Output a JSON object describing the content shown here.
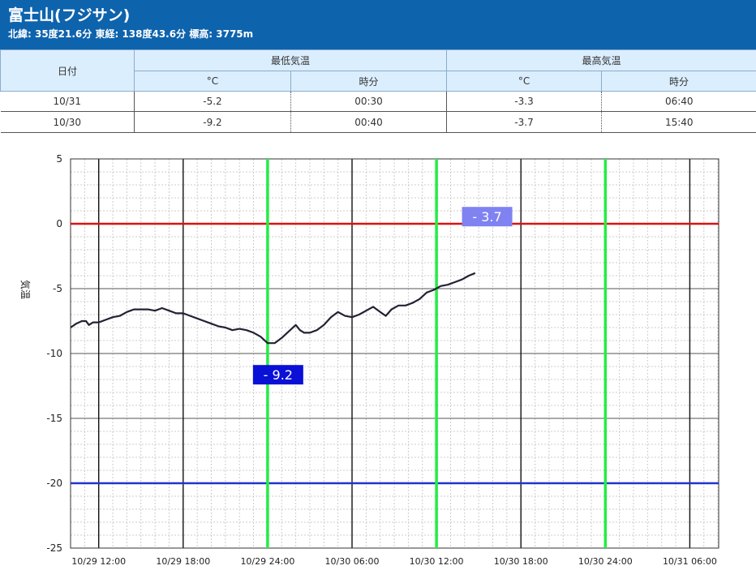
{
  "station": {
    "title": "富士山(フジサン)",
    "coords": "北緯: 35度21.6分 東経: 138度43.6分 標高: 3775m"
  },
  "table": {
    "date_header": "日付",
    "min_header": "最低気温",
    "max_header": "最高気温",
    "unit_celsius": "°C",
    "time_label": "時分",
    "rows": [
      {
        "date": "10/31",
        "min_c": "-5.2",
        "min_time": "00:30",
        "max_c": "-3.3",
        "max_time": "06:40"
      },
      {
        "date": "10/30",
        "min_c": "-9.2",
        "min_time": "00:40",
        "max_c": "-3.7",
        "max_time": "15:40"
      }
    ]
  },
  "chart_data": {
    "type": "line",
    "ylabel": "気温",
    "ylim": [
      -25,
      5
    ],
    "yticks": [
      5,
      0,
      -5,
      -10,
      -15,
      -20,
      -25
    ],
    "x_hours_range": [
      0,
      28.75
    ],
    "x_tick_labels": [
      {
        "hour": 2,
        "label": "10/29 12:00"
      },
      {
        "hour": 8,
        "label": "10/29 18:00"
      },
      {
        "hour": 14,
        "label": "10/29 24:00"
      },
      {
        "hour": 20,
        "label": "10/30 06:00"
      },
      {
        "hour": 26,
        "label": "10/30 12:00"
      },
      {
        "hour": 32,
        "label": "10/30 18:00"
      },
      {
        "hour": 38,
        "label": "10/30 24:00"
      },
      {
        "hour": 44,
        "label": "10/31 06:00"
      }
    ],
    "reference_lines": [
      {
        "value": 0,
        "color": "#dd1111"
      },
      {
        "value": -20,
        "color": "#2233cc"
      }
    ],
    "day_markers_hours": [
      14,
      26,
      38
    ],
    "day_marker_color": "#22ee44",
    "annotations": [
      {
        "text": "- 9.2",
        "hour": 14.4,
        "value": -9.2,
        "style": "min"
      },
      {
        "text": "- 3.7",
        "hour": 29.6,
        "value": -3.7,
        "style": "max"
      }
    ],
    "series": [
      {
        "color": "#222233",
        "points": [
          [
            0,
            -8.0
          ],
          [
            0.4,
            -7.7
          ],
          [
            0.8,
            -7.5
          ],
          [
            1.1,
            -7.5
          ],
          [
            1.3,
            -7.8
          ],
          [
            1.6,
            -7.6
          ],
          [
            2.0,
            -7.6
          ],
          [
            2.5,
            -7.4
          ],
          [
            3.0,
            -7.2
          ],
          [
            3.5,
            -7.1
          ],
          [
            4.0,
            -6.8
          ],
          [
            4.5,
            -6.6
          ],
          [
            5.0,
            -6.6
          ],
          [
            5.5,
            -6.6
          ],
          [
            6.0,
            -6.7
          ],
          [
            6.5,
            -6.5
          ],
          [
            7.0,
            -6.7
          ],
          [
            7.5,
            -6.9
          ],
          [
            8.0,
            -6.9
          ],
          [
            8.5,
            -7.1
          ],
          [
            9.0,
            -7.3
          ],
          [
            9.5,
            -7.5
          ],
          [
            10.0,
            -7.7
          ],
          [
            10.5,
            -7.9
          ],
          [
            11.0,
            -8.0
          ],
          [
            11.5,
            -8.2
          ],
          [
            12.0,
            -8.1
          ],
          [
            12.5,
            -8.2
          ],
          [
            13.0,
            -8.4
          ],
          [
            13.5,
            -8.7
          ],
          [
            14.0,
            -9.2
          ],
          [
            14.5,
            -9.2
          ],
          [
            15.0,
            -8.8
          ],
          [
            15.5,
            -8.3
          ],
          [
            16.0,
            -7.8
          ],
          [
            16.3,
            -8.2
          ],
          [
            16.6,
            -8.4
          ],
          [
            17.0,
            -8.4
          ],
          [
            17.5,
            -8.2
          ],
          [
            18.0,
            -7.8
          ],
          [
            18.5,
            -7.2
          ],
          [
            19.0,
            -6.8
          ],
          [
            19.5,
            -7.1
          ],
          [
            20.0,
            -7.2
          ],
          [
            20.5,
            -7.0
          ],
          [
            21.0,
            -6.7
          ],
          [
            21.5,
            -6.4
          ],
          [
            22.0,
            -6.8
          ],
          [
            22.4,
            -7.1
          ],
          [
            22.8,
            -6.6
          ],
          [
            23.3,
            -6.3
          ],
          [
            23.8,
            -6.3
          ],
          [
            24.3,
            -6.1
          ],
          [
            24.8,
            -5.8
          ],
          [
            25.3,
            -5.3
          ],
          [
            25.8,
            -5.1
          ],
          [
            26.3,
            -4.8
          ],
          [
            26.8,
            -4.7
          ],
          [
            27.3,
            -4.5
          ],
          [
            27.8,
            -4.3
          ],
          [
            28.3,
            -4.0
          ],
          [
            28.75,
            -3.8
          ]
        ]
      }
    ]
  }
}
